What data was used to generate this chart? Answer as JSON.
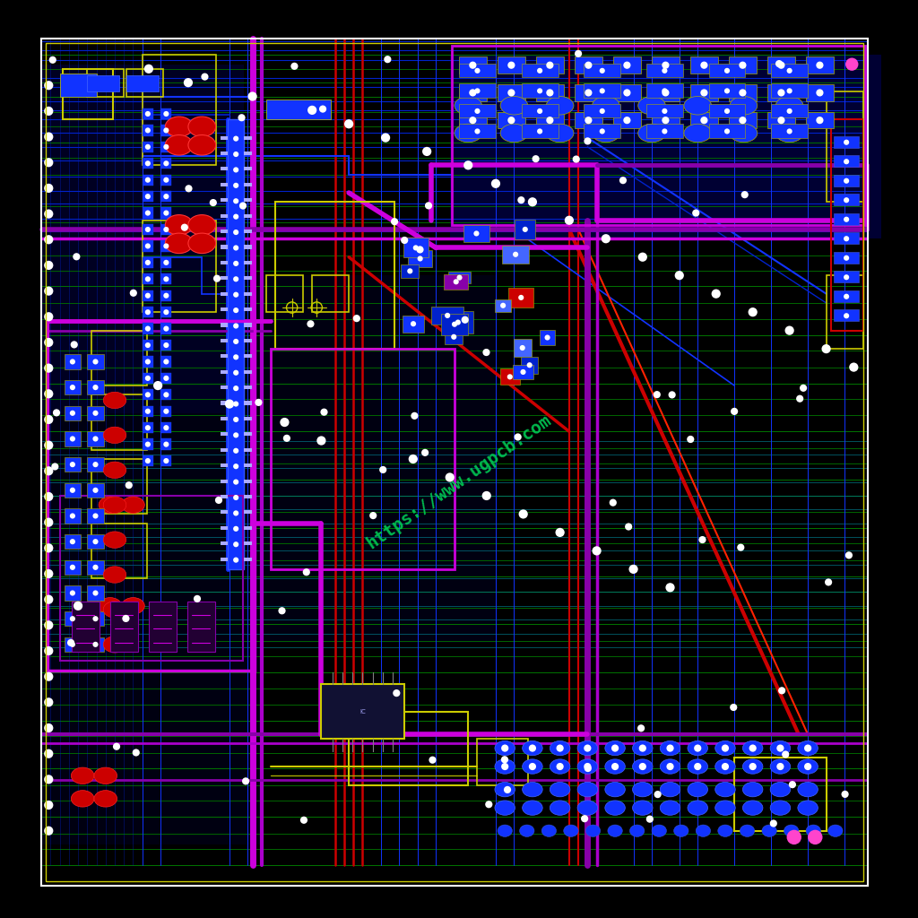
{
  "bg_color": "#000000",
  "border_color": "#ffffff",
  "board_inner_color": "#cccc00",
  "watermark_text": "https://www.ugpcb.com",
  "watermark_color": "#00cc55",
  "watermark_alpha": 0.9,
  "watermark_rotation": 35,
  "watermark_fontsize": 14,
  "fig_size": [
    10.24,
    10.24
  ],
  "dpi": 100,
  "colors": {
    "blue": "#1133ff",
    "blue_dark": "#0022cc",
    "blue_bright": "#4466ff",
    "red": "#cc0000",
    "red_bright": "#ff2200",
    "green": "#006600",
    "green2": "#008800",
    "green3": "#00aa00",
    "purple": "#8800aa",
    "magenta": "#cc00dd",
    "magenta2": "#aa00cc",
    "yellow": "#cccc00",
    "gold": "#aaaa00",
    "cyan": "#00aacc",
    "orange": "#cc6600",
    "white": "#ffffff",
    "pink": "#ff44cc",
    "teal": "#008899"
  },
  "board_bounds": [
    0.045,
    0.035,
    0.945,
    0.958
  ],
  "seed": 123
}
